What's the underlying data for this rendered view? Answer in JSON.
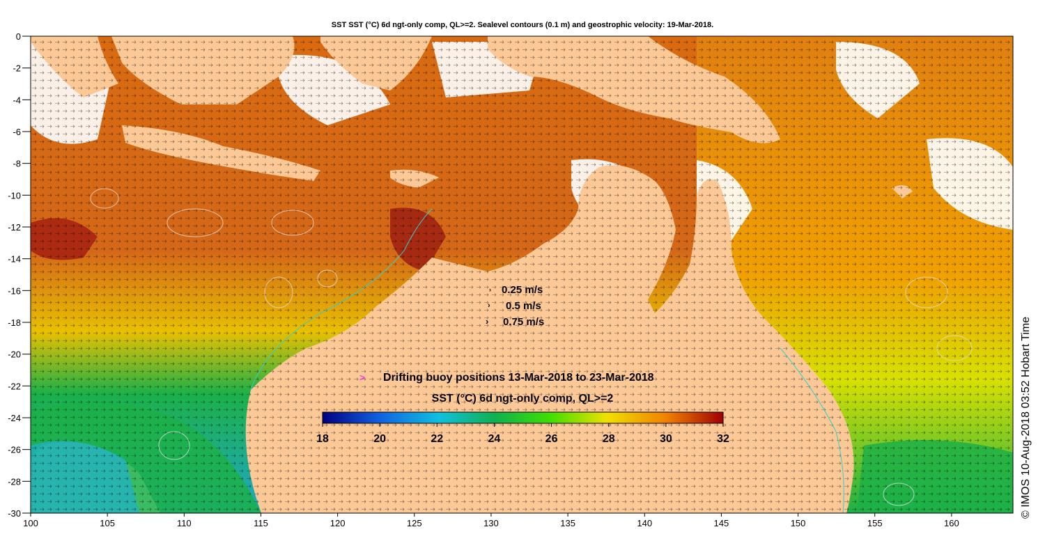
{
  "title": "SST SST (°C) 6d ngt-only comp, QL>=2. Sealevel contours (0.1 m) and geostrophic velocity: 19-Mar-2018.",
  "axes": {
    "x_ticks": [
      "100",
      "105",
      "110",
      "115",
      "120",
      "125",
      "130",
      "135",
      "140",
      "145",
      "150",
      "155",
      "160"
    ],
    "y_ticks": [
      "0",
      "-2",
      "-4",
      "-6",
      "-8",
      "-10",
      "-12",
      "-14",
      "-16",
      "-18",
      "-20",
      "-22",
      "-24",
      "-26",
      "-28",
      "-30"
    ],
    "lon_range": [
      100,
      164
    ],
    "lat_range": [
      -30,
      0
    ]
  },
  "velocity_legend": [
    {
      "label": "0.25 m/s"
    },
    {
      "label": "0.5 m/s"
    },
    {
      "label": "0.75 m/s"
    }
  ],
  "buoy_legend": {
    "marker": ">",
    "label": "Drifting buoy positions 13-Mar-2018 to 23-Mar-2018",
    "color": "#ff00ff"
  },
  "colorbar": {
    "title": "SST (°C) 6d ngt-only comp, QL>=2",
    "ticks": [
      "18",
      "20",
      "22",
      "24",
      "26",
      "28",
      "30",
      "32"
    ],
    "range": [
      18,
      32
    ]
  },
  "credit": "© IMOS 10-Aug-2018 03:52 Hobart Time",
  "colors": {
    "land": "#fcc896",
    "warm": "#d96a10",
    "hot": "#9a1a10",
    "mid": "#f0a000",
    "yellow": "#e6e600",
    "green": "#1cb048",
    "cool": "#1aa8d0"
  }
}
